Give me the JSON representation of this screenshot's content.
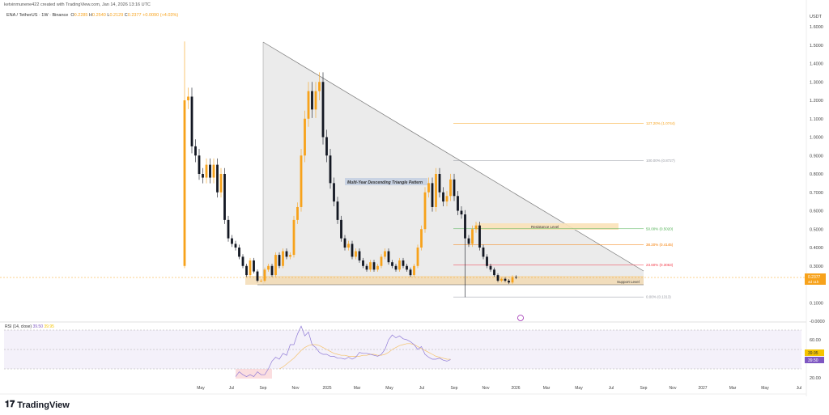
{
  "header": {
    "credit": "ketvinmunene422 created with TradingView.com, Jan 14, 2026 13:16 UTC",
    "symbol": "ENA / TetherUS · 1W · Binance",
    "o_label": "O",
    "o": "0.2285",
    "h_label": "H",
    "h": "0.2540",
    "l_label": "L",
    "l": "0.2129",
    "c_label": "C",
    "c": "0.2377",
    "change": "+0.0090 (+4.03%)"
  },
  "price_axis": {
    "currency": "USDT",
    "ticks": [
      "1.6000",
      "1.5000",
      "1.4000",
      "1.3000",
      "1.2000",
      "1.1000",
      "1.0000",
      "0.9000",
      "0.8000",
      "0.7000",
      "0.6000",
      "0.5000",
      "0.4000",
      "0.3000",
      "0.1000",
      "-0.0000"
    ],
    "last_price": "0.2377",
    "countdown": "4d 11h"
  },
  "time_axis": [
    "May",
    "Jul",
    "Sep",
    "Nov",
    "2025",
    "Mar",
    "May",
    "Jul",
    "Sep",
    "Nov",
    "2026",
    "Mar",
    "May",
    "Jul",
    "Sep",
    "Nov",
    "2027",
    "Mar",
    "May",
    "Jul"
  ],
  "annotations": {
    "pattern": "Multi-Year Descending Triangle Pattern",
    "resistance": "Resistance Level",
    "support": "Support Level"
  },
  "fib_levels": [
    {
      "label": "127.20% (1.0744)",
      "price": 1.0744,
      "color": "#f7a21b"
    },
    {
      "label": "100.00% (0.8727)",
      "price": 0.8727,
      "color": "#9598a1"
    },
    {
      "label": "50.00% (0.5020)",
      "price": 0.502,
      "color": "#4caf50"
    },
    {
      "label": "38.20% (0.4145)",
      "price": 0.4145,
      "color": "#f57c00"
    },
    {
      "label": "23.60% (0.3063)",
      "price": 0.3063,
      "color": "#f23645"
    },
    {
      "label": "0.00% (0.1313)",
      "price": 0.1313,
      "color": "#9598a1"
    }
  ],
  "rsi": {
    "label": "RSI (14, close)",
    "value": "39.50",
    "ma_value": "39.95",
    "ticks": [
      "60.00",
      "20.00"
    ]
  },
  "brand": "TradingView",
  "chart_data": {
    "type": "candlestick",
    "title": "ENA / TetherUS · 1W · Binance",
    "ylabel": "USDT",
    "ylim": [
      0,
      1.6
    ],
    "closes": [
      1.2,
      1.22,
      0.95,
      0.9,
      0.8,
      0.78,
      0.85,
      0.78,
      0.85,
      0.7,
      0.8,
      0.55,
      0.45,
      0.42,
      0.4,
      0.35,
      0.3,
      0.25,
      0.33,
      0.27,
      0.22,
      0.22,
      0.28,
      0.3,
      0.25,
      0.36,
      0.3,
      0.38,
      0.35,
      0.36,
      0.55,
      0.62,
      0.9,
      1.1,
      1.25,
      1.15,
      1.25,
      1.3,
      1.0,
      0.9,
      0.75,
      0.65,
      0.55,
      0.45,
      0.4,
      0.42,
      0.35,
      0.38,
      0.33,
      0.3,
      0.28,
      0.32,
      0.28,
      0.3,
      0.35,
      0.38,
      0.32,
      0.3,
      0.28,
      0.33,
      0.3,
      0.28,
      0.25,
      0.3,
      0.4,
      0.5,
      0.7,
      0.75,
      0.62,
      0.8,
      0.7,
      0.65,
      0.68,
      0.77,
      0.68,
      0.6,
      0.58,
      0.45,
      0.42,
      0.5,
      0.52,
      0.4,
      0.35,
      0.3,
      0.28,
      0.25,
      0.22,
      0.23,
      0.22,
      0.21,
      0.24,
      0.2377
    ],
    "first_open": 0.3,
    "first_high": 1.52,
    "crash_low": 0.13,
    "rsi_values": [
      22,
      27,
      24,
      22,
      24,
      22,
      27,
      24,
      24,
      30,
      38,
      42,
      40,
      46,
      44,
      55,
      55,
      66,
      74,
      64,
      68,
      55,
      52,
      47,
      45,
      45,
      43,
      43,
      41,
      41,
      40,
      42,
      40,
      42,
      47,
      46,
      46,
      45,
      44,
      43,
      45,
      50,
      60,
      65,
      62,
      64,
      61,
      60,
      58,
      55,
      50,
      53,
      45,
      42,
      40,
      40,
      41,
      39,
      38,
      39.5
    ],
    "rsi_ma": [
      null,
      null,
      null,
      null,
      null,
      null,
      null,
      null,
      null,
      null,
      null,
      null,
      30,
      32,
      35,
      38,
      41,
      45,
      49,
      52,
      54,
      55,
      55,
      54,
      52,
      50,
      48,
      46,
      45,
      44,
      44,
      43,
      43,
      43,
      43,
      44,
      44,
      45,
      45,
      44,
      44,
      45,
      47,
      50,
      52,
      54,
      55,
      56,
      56,
      55,
      53,
      51,
      49,
      47,
      45,
      43,
      42,
      41,
      40,
      39.95
    ],
    "rsi_levels": [
      70,
      50,
      30
    ]
  }
}
